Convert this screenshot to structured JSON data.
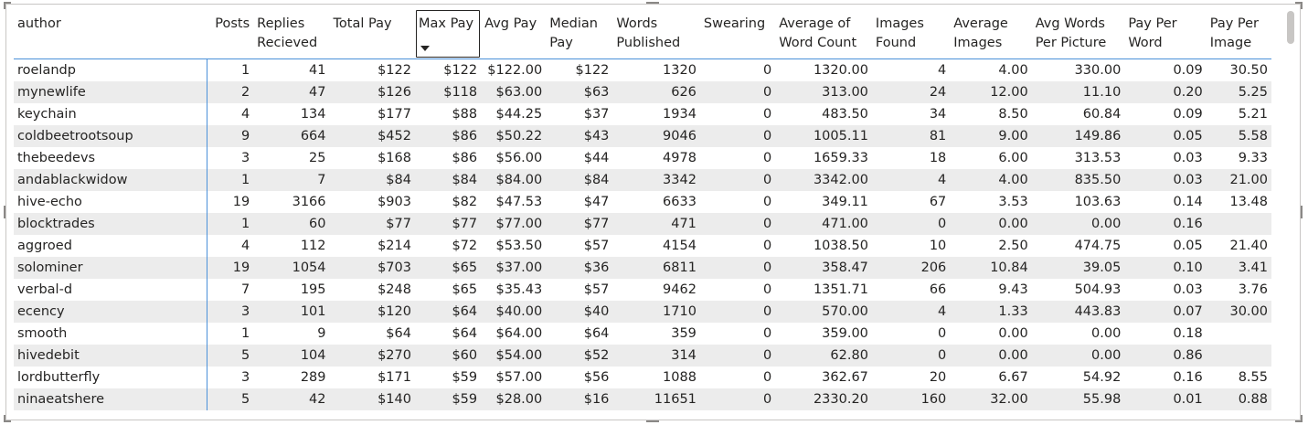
{
  "table": {
    "columns": [
      "author",
      "Posts",
      "Replies Recieved",
      "Total Pay",
      "Max Pay",
      "Avg Pay",
      "Median Pay",
      "Words Published",
      "Swearing",
      "Average of Word Count",
      "Images Found",
      "Average Images",
      "Avg Words Per Picture",
      "Pay Per Word",
      "Pay Per Image"
    ],
    "rows": [
      [
        "roelandp",
        "1",
        "41",
        "$122",
        "$122",
        "$122.00",
        "$122",
        "1320",
        "0",
        "1320.00",
        "4",
        "4.00",
        "330.00",
        "0.09",
        "30.50"
      ],
      [
        "mynewlife",
        "2",
        "47",
        "$126",
        "$118",
        "$63.00",
        "$63",
        "626",
        "0",
        "313.00",
        "24",
        "12.00",
        "11.10",
        "0.20",
        "5.25"
      ],
      [
        "keychain",
        "4",
        "134",
        "$177",
        "$88",
        "$44.25",
        "$37",
        "1934",
        "0",
        "483.50",
        "34",
        "8.50",
        "60.84",
        "0.09",
        "5.21"
      ],
      [
        "coldbeetrootsoup",
        "9",
        "664",
        "$452",
        "$86",
        "$50.22",
        "$43",
        "9046",
        "0",
        "1005.11",
        "81",
        "9.00",
        "149.86",
        "0.05",
        "5.58"
      ],
      [
        "thebeedevs",
        "3",
        "25",
        "$168",
        "$86",
        "$56.00",
        "$44",
        "4978",
        "0",
        "1659.33",
        "18",
        "6.00",
        "313.53",
        "0.03",
        "9.33"
      ],
      [
        "andablackwidow",
        "1",
        "7",
        "$84",
        "$84",
        "$84.00",
        "$84",
        "3342",
        "0",
        "3342.00",
        "4",
        "4.00",
        "835.50",
        "0.03",
        "21.00"
      ],
      [
        "hive-echo",
        "19",
        "3166",
        "$903",
        "$82",
        "$47.53",
        "$47",
        "6633",
        "0",
        "349.11",
        "67",
        "3.53",
        "103.63",
        "0.14",
        "13.48"
      ],
      [
        "blocktrades",
        "1",
        "60",
        "$77",
        "$77",
        "$77.00",
        "$77",
        "471",
        "0",
        "471.00",
        "0",
        "0.00",
        "0.00",
        "0.16",
        ""
      ],
      [
        "aggroed",
        "4",
        "112",
        "$214",
        "$72",
        "$53.50",
        "$57",
        "4154",
        "0",
        "1038.50",
        "10",
        "2.50",
        "474.75",
        "0.05",
        "21.40"
      ],
      [
        "solominer",
        "19",
        "1054",
        "$703",
        "$65",
        "$37.00",
        "$36",
        "6811",
        "0",
        "358.47",
        "206",
        "10.84",
        "39.05",
        "0.10",
        "3.41"
      ],
      [
        "verbal-d",
        "7",
        "195",
        "$248",
        "$65",
        "$35.43",
        "$57",
        "9462",
        "0",
        "1351.71",
        "66",
        "9.43",
        "504.93",
        "0.03",
        "3.76"
      ],
      [
        "ecency",
        "3",
        "101",
        "$120",
        "$64",
        "$40.00",
        "$40",
        "1710",
        "0",
        "570.00",
        "4",
        "1.33",
        "443.83",
        "0.07",
        "30.00"
      ],
      [
        "smooth",
        "1",
        "9",
        "$64",
        "$64",
        "$64.00",
        "$64",
        "359",
        "0",
        "359.00",
        "0",
        "0.00",
        "0.00",
        "0.18",
        ""
      ],
      [
        "hivedebit",
        "5",
        "104",
        "$270",
        "$60",
        "$54.00",
        "$52",
        "314",
        "0",
        "62.80",
        "0",
        "0.00",
        "0.00",
        "0.86",
        ""
      ],
      [
        "lordbutterfly",
        "3",
        "289",
        "$171",
        "$59",
        "$57.00",
        "$56",
        "1088",
        "0",
        "362.67",
        "20",
        "6.67",
        "54.92",
        "0.16",
        "8.55"
      ],
      [
        "ninaeatshere",
        "5",
        "42",
        "$140",
        "$59",
        "$28.00",
        "$16",
        "11651",
        "0",
        "2330.20",
        "160",
        "32.00",
        "55.98",
        "0.01",
        "0.88"
      ]
    ]
  }
}
